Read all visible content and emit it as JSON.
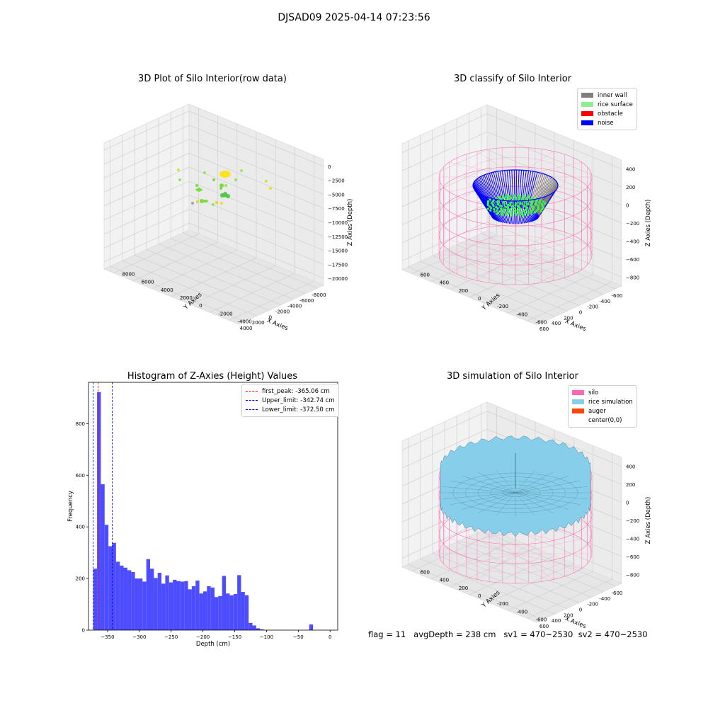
{
  "suptitle": "DJSAD09 2025-04-14 07:23:56",
  "footer": {
    "flag": "flag = 11",
    "avg": "avgDepth = 238 cm",
    "sv1": "sv1 = 470~2530",
    "sv2": "sv2 = 470~2530"
  },
  "colors": {
    "hist": "#4d4dff",
    "first_peak": "#ff0000",
    "limits": "#0000ff",
    "inner_wall": "#808080",
    "rice_surface": "#90ee90",
    "obstacle": "#ff0000",
    "noise": "#0000ff",
    "silo": "#ff69b4",
    "rice_sim": "#87ceeb",
    "auger": "#ff4500"
  },
  "chart_data": [
    {
      "type": "scatter",
      "title": "3D Plot of Silo Interior(row data)",
      "projection": "3d",
      "xlabel": "X Axies",
      "ylabel": "Y Axies",
      "zlabel": "Z Axies (Depth)",
      "xticks": [
        "-8000",
        "-6000",
        "-4000",
        "-2000",
        "0",
        "2000",
        "4000"
      ],
      "yticks": [
        "-4000",
        "-2000",
        "0",
        "2000",
        "4000",
        "6000",
        "8000"
      ],
      "zticks": [
        "0",
        "−2500",
        "−5000",
        "−7500",
        "−10000",
        "−12500",
        "−15000",
        "−17500",
        "−20000"
      ],
      "xlim": [
        -8500,
        4500
      ],
      "ylim": [
        -4500,
        8500
      ],
      "zlim": [
        -20500,
        500
      ],
      "grid": true
    },
    {
      "type": "scatter",
      "title": "3D classify of Silo Interior",
      "projection": "3d",
      "xlabel": "X Axies",
      "ylabel": "Y Axies",
      "zlabel": "Z Axies (Depth)",
      "xticks": [
        "-600",
        "-400",
        "-200",
        "0",
        "200",
        "400",
        "600"
      ],
      "yticks": [
        "-600",
        "-400",
        "-200",
        "0",
        "200",
        "400",
        "600"
      ],
      "zticks": [
        "400",
        "200",
        "0",
        "−200",
        "−400",
        "−600",
        "−800"
      ],
      "xlim": [
        -650,
        650
      ],
      "ylim": [
        -650,
        650
      ],
      "zlim": [
        -900,
        450
      ],
      "legend": [
        "inner wall",
        "rice surface",
        "obstacle",
        "noise"
      ],
      "legend_position": "upper right",
      "grid": true
    },
    {
      "type": "bar",
      "title": "Histogram of Z-Axies (Height) Values",
      "xlabel": "Depth (cm)",
      "ylabel": "Frequency",
      "xlim": [
        -380,
        12
      ],
      "ylim": [
        0,
        960
      ],
      "xticks": [
        "−350",
        "−300",
        "−250",
        "−200",
        "−150",
        "−100",
        "−50",
        "0"
      ],
      "yticks": [
        "0",
        "200",
        "400",
        "600",
        "800"
      ],
      "bin_start": -372.5,
      "bin_width": 5.96,
      "values": [
        238,
        922,
        565,
        408,
        325,
        338,
        265,
        250,
        242,
        232,
        225,
        200,
        200,
        188,
        275,
        238,
        202,
        222,
        180,
        212,
        185,
        195,
        190,
        188,
        190,
        158,
        170,
        192,
        142,
        150,
        170,
        165,
        128,
        132,
        210,
        142,
        135,
        140,
        213,
        148,
        135,
        28,
        18,
        7,
        3,
        0,
        0,
        0,
        0,
        0,
        0,
        0,
        0,
        0,
        0,
        0,
        0,
        22
      ],
      "lines": [
        {
          "label": "first_peak: -365.06 cm",
          "x": -365.06,
          "style": "dashed",
          "color": "red"
        },
        {
          "label": "Upper_limit: -342.74 cm",
          "x": -342.74,
          "style": "dashed",
          "color": "blue"
        },
        {
          "label": "Lower_limit: -372.50 cm",
          "x": -372.5,
          "style": "dashed",
          "color": "blue"
        }
      ],
      "legend_position": "upper right",
      "grid": false
    },
    {
      "type": "area",
      "title": "3D simulation of Silo Interior",
      "projection": "3d",
      "xlabel": "X Axies",
      "ylabel": "Y Axies",
      "zlabel": "Z Axies (Depth)",
      "xticks": [
        "-600",
        "-400",
        "-200",
        "0",
        "200",
        "400",
        "600"
      ],
      "yticks": [
        "-600",
        "-400",
        "-200",
        "0",
        "200",
        "400",
        "600"
      ],
      "zticks": [
        "400",
        "200",
        "0",
        "−200",
        "−400",
        "−600",
        "−800"
      ],
      "xlim": [
        -650,
        650
      ],
      "ylim": [
        -650,
        650
      ],
      "zlim": [
        -900,
        450
      ],
      "legend": [
        "silo",
        "rice simulation",
        "auger",
        "center(0,0)"
      ],
      "legend_position": "upper right",
      "grid": true
    }
  ]
}
